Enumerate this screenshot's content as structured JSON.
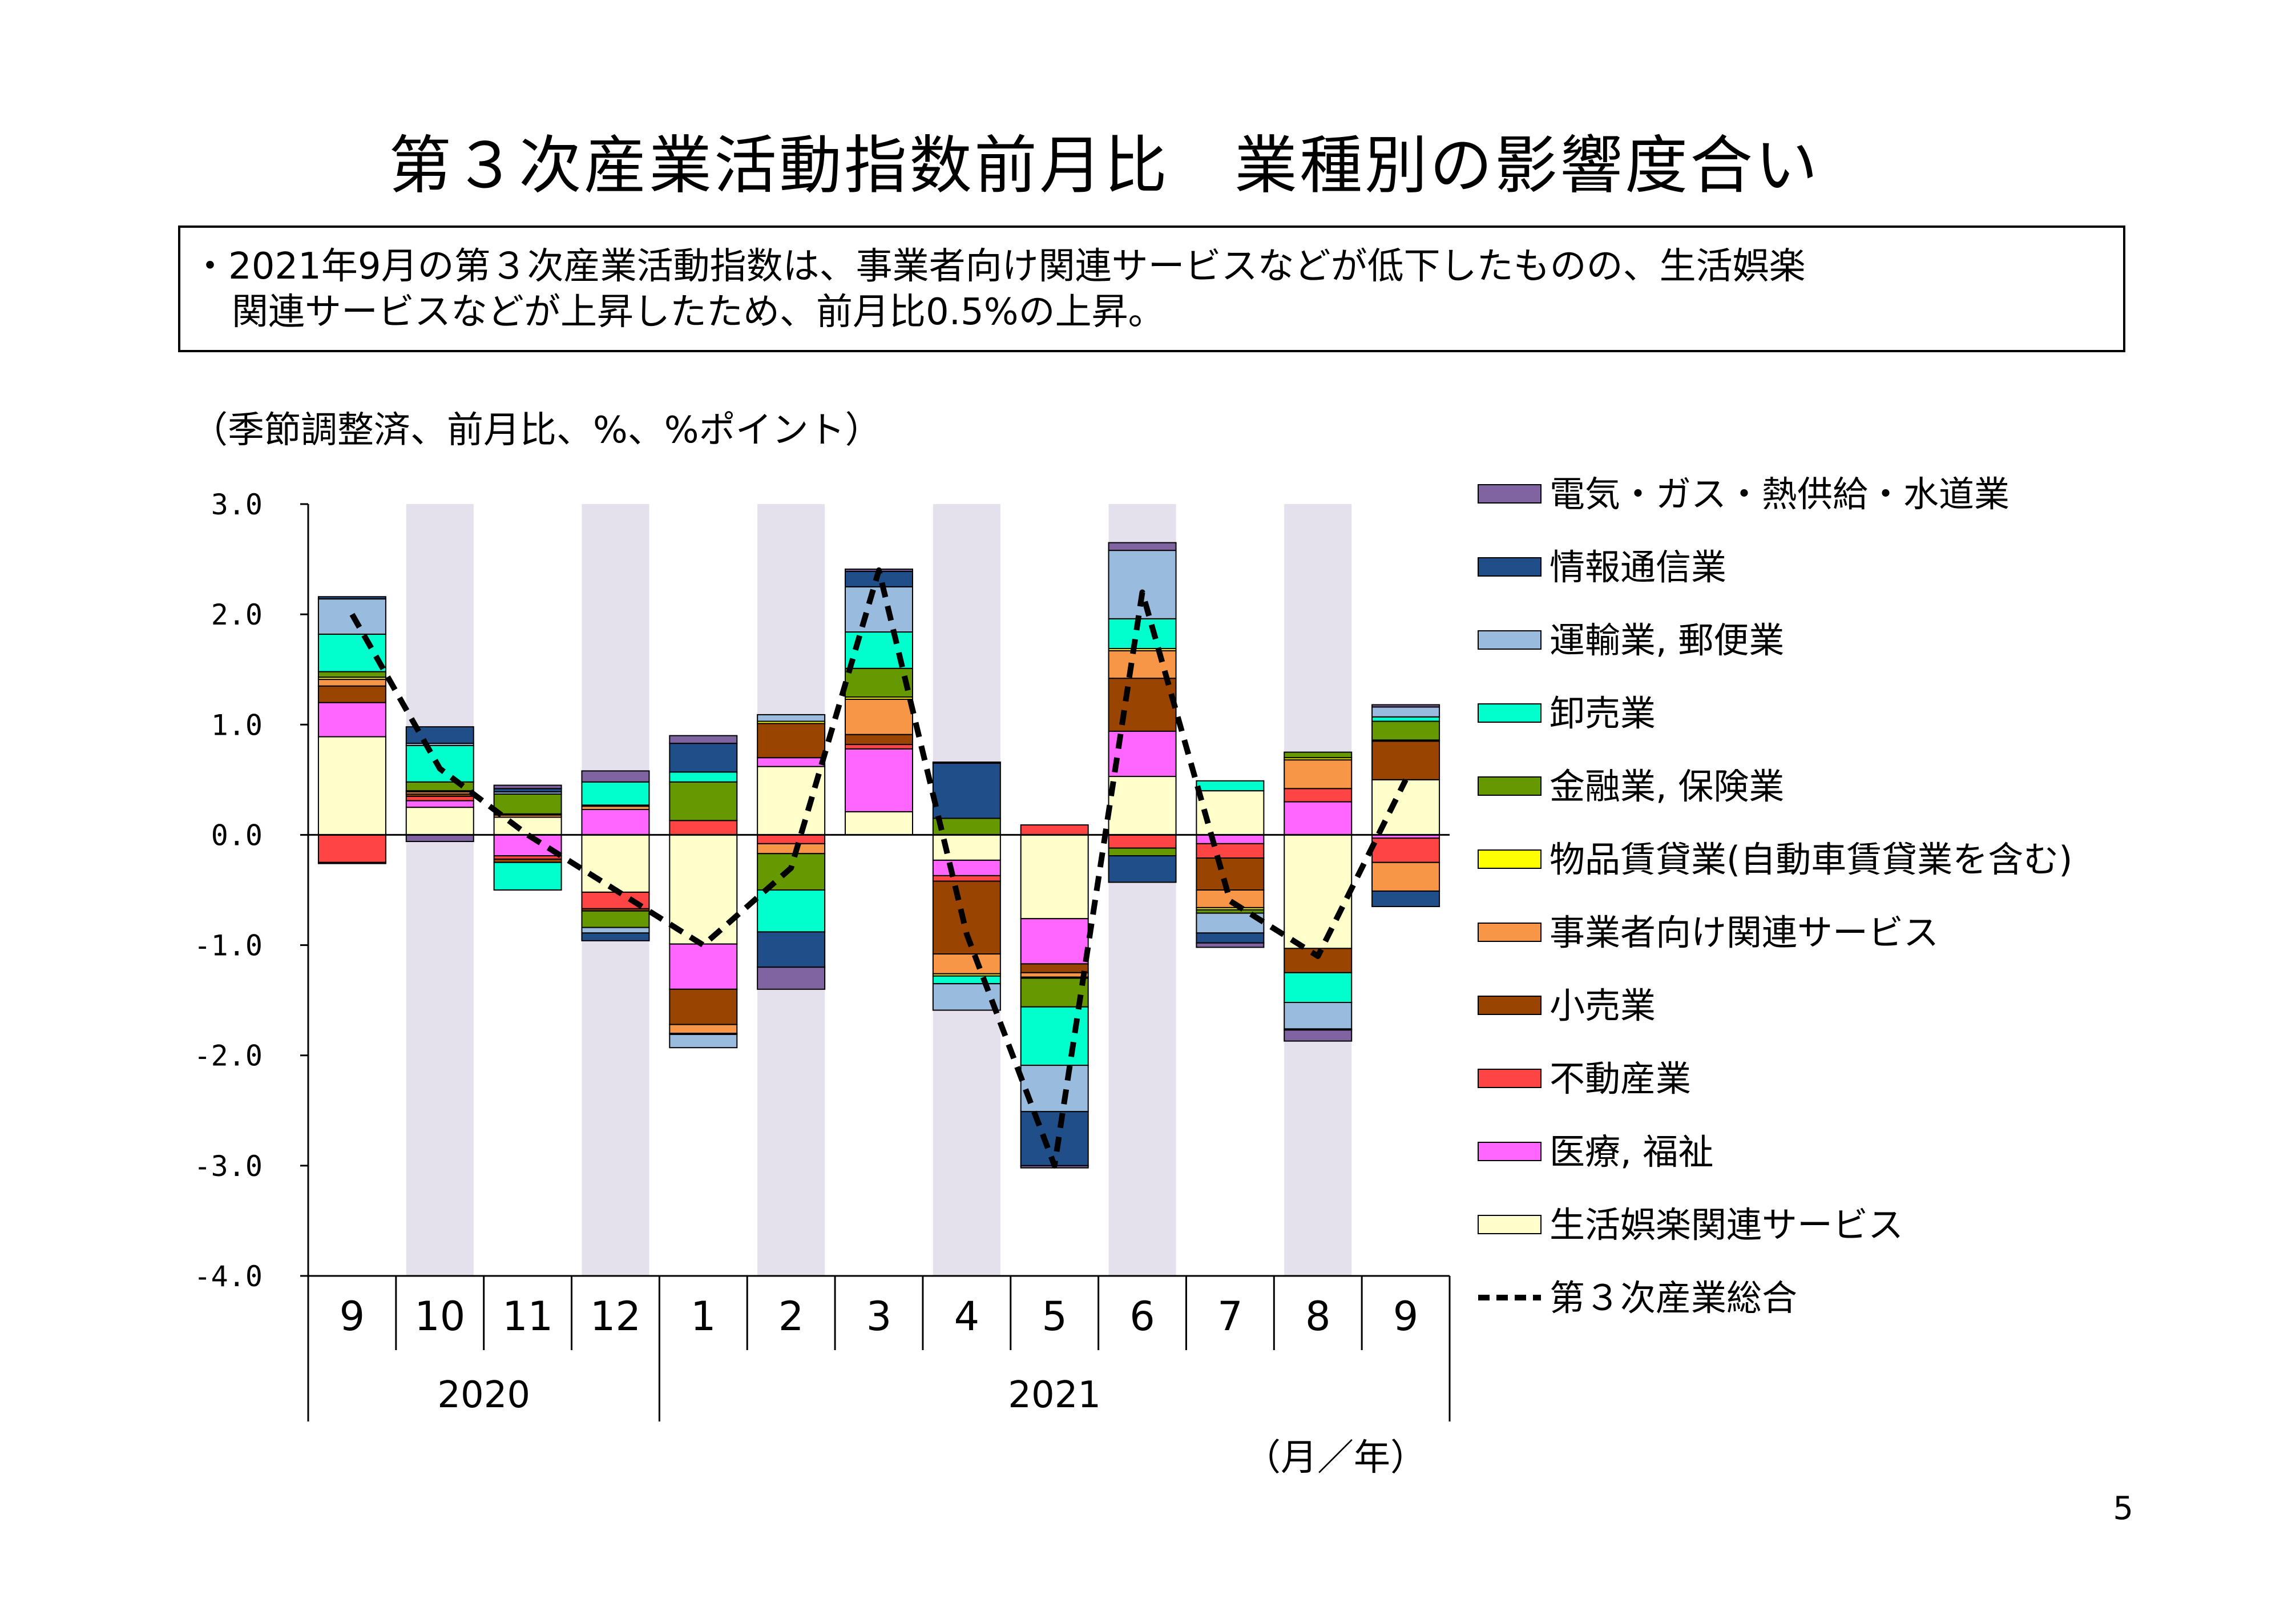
{
  "title": "第３次産業活動指数前月比　業種別の影響度合い",
  "summary": {
    "line1": "・2021年9月の第３次産業活動指数は、事業者向け関連サービスなどが低下したものの、生活娯楽",
    "line2": "関連サービスなどが上昇したため、前月比0.5%の上昇。"
  },
  "page_number": "5",
  "chart_data": {
    "type": "bar",
    "stacked": true,
    "unit_label": "（季節調整済、前月比、%、%ポイント）",
    "xlabel": "（月／年）",
    "ylim": [
      -4.0,
      3.0
    ],
    "yticks": [
      "3.0",
      "2.0",
      "1.0",
      "0.0",
      "-1.0",
      "-2.0",
      "-3.0",
      "-4.0"
    ],
    "categories": [
      "9",
      "10",
      "11",
      "12",
      "1",
      "2",
      "3",
      "4",
      "5",
      "6",
      "7",
      "8",
      "9"
    ],
    "years": [
      {
        "label": "2020",
        "span": [
          0,
          3
        ]
      },
      {
        "label": "2021",
        "span": [
          4,
          12
        ]
      }
    ],
    "shaded_columns": [
      1,
      3,
      5,
      7,
      9,
      11
    ],
    "series": [
      {
        "name": "生活娯楽関連サービス",
        "color": "#FFFFCC",
        "values": [
          0.89,
          0.25,
          0.16,
          -0.52,
          -0.99,
          0.62,
          0.21,
          -0.23,
          -0.76,
          0.53,
          0.4,
          -1.03,
          0.5
        ]
      },
      {
        "name": "医療, 福祉",
        "color": "#FF66FF",
        "values": [
          0.31,
          0.06,
          -0.19,
          0.23,
          -0.41,
          0.08,
          0.57,
          -0.14,
          -0.41,
          0.41,
          -0.08,
          0.3,
          -0.03
        ]
      },
      {
        "name": "不動産業",
        "color": "#FF4444",
        "values": [
          -0.25,
          0.04,
          -0.03,
          -0.15,
          0.13,
          -0.08,
          0.04,
          -0.05,
          0.09,
          -0.12,
          -0.13,
          0.12,
          -0.22
        ]
      },
      {
        "name": "小売業",
        "color": "#994400",
        "values": [
          0.15,
          0.02,
          -0.03,
          -0.02,
          -0.32,
          0.31,
          0.09,
          -0.66,
          -0.08,
          0.48,
          -0.29,
          -0.22,
          0.35
        ]
      },
      {
        "name": "事業者向け関連サービス",
        "color": "#F79646",
        "values": [
          0.06,
          0.02,
          0.02,
          0.03,
          -0.08,
          -0.09,
          0.32,
          -0.18,
          -0.04,
          0.25,
          -0.16,
          0.26,
          -0.26
        ]
      },
      {
        "name": "物品賃貸業(自動車賃貸業を含む)",
        "color": "#FFFF00",
        "values": [
          0.02,
          0.01,
          0.01,
          0.01,
          -0.01,
          0.02,
          0.02,
          -0.02,
          -0.01,
          0.02,
          -0.02,
          0.02,
          0.01
        ]
      },
      {
        "name": "金融業, 保険業",
        "color": "#669900",
        "values": [
          0.05,
          0.08,
          0.18,
          -0.15,
          0.35,
          -0.33,
          0.26,
          0.15,
          -0.26,
          -0.07,
          -0.03,
          0.05,
          0.17
        ]
      },
      {
        "name": "卸売業",
        "color": "#00FFCC",
        "values": [
          0.34,
          0.33,
          -0.25,
          0.21,
          0.09,
          -0.38,
          0.33,
          -0.07,
          -0.53,
          0.27,
          0.09,
          -0.27,
          0.04
        ]
      },
      {
        "name": "運輸業, 郵便業",
        "color": "#99BBDD",
        "values": [
          0.32,
          0.02,
          0.02,
          -0.05,
          -0.12,
          0.06,
          0.41,
          -0.24,
          -0.42,
          0.62,
          -0.18,
          -0.24,
          0.09
        ]
      },
      {
        "name": "情報通信業",
        "color": "#1F4E88",
        "values": [
          0.02,
          0.15,
          0.03,
          -0.07,
          0.26,
          -0.32,
          0.14,
          0.5,
          -0.49,
          -0.24,
          -0.09,
          -0.01,
          -0.14
        ]
      },
      {
        "name": "電気・ガス・熱供給・水道業",
        "color": "#8064A2",
        "values": [
          -0.01,
          -0.06,
          0.03,
          0.1,
          0.07,
          -0.2,
          0.02,
          0.01,
          -0.02,
          0.07,
          -0.04,
          -0.1,
          0.02
        ]
      }
    ],
    "total": {
      "name": "第３次産業総合",
      "values": [
        2.0,
        0.6,
        0.0,
        -0.5,
        -1.0,
        -0.3,
        2.4,
        -0.9,
        -3.0,
        2.2,
        -0.6,
        -1.1,
        0.5
      ]
    },
    "legend": {
      "placement": "right",
      "order": [
        "電気・ガス・熱供給・水道業",
        "情報通信業",
        "運輸業, 郵便業",
        "卸売業",
        "金融業, 保険業",
        "物品賃貸業(自動車賃貸業を含む)",
        "事業者向け関連サービス",
        "小売業",
        "不動産業",
        "医療, 福祉",
        "生活娯楽関連サービス",
        "第３次産業総合"
      ]
    }
  }
}
